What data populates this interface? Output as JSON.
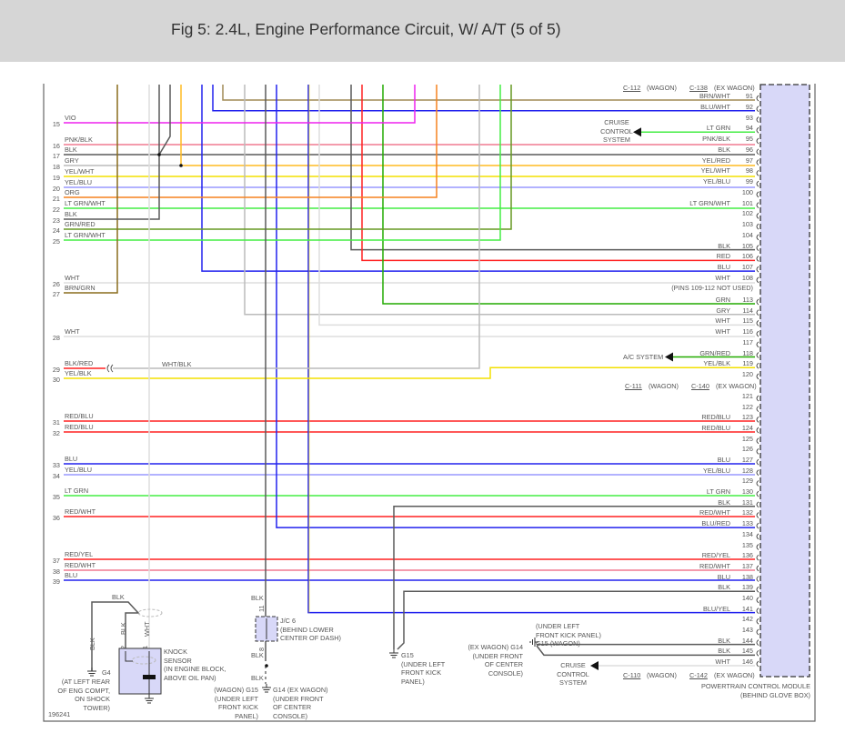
{
  "header": {
    "title": "Fig 5: 2.4L, Engine Performance Circuit, W/ A/T (5 of 5)"
  },
  "colors": {
    "VIO": "#ee22ee",
    "PNK": "#f07a90",
    "BLK": "#5a5a5a",
    "GRY": "#bbbbbb",
    "WHT": "#dddddd",
    "YEL": "#f3e000",
    "ORG": "#f5821f",
    "LTGRN": "#44ee44",
    "GRN": "#22aa00",
    "OLV": "#669922",
    "BRN": "#8a6d1d",
    "BRNWHT": "#a08a55",
    "BLU": "#2222ee",
    "RED": "#ff2020",
    "YELBLU": "#9999ff",
    "YELRED": "#ffbb22",
    "PCM": "#d8d8f8"
  },
  "left_pins": [
    {
      "pin": "15",
      "wire": "VIO"
    },
    {
      "pin": "16",
      "wire": "PNK/BLK"
    },
    {
      "pin": "17",
      "wire": "BLK"
    },
    {
      "pin": "18",
      "wire": "GRY"
    },
    {
      "pin": "19",
      "wire": "YEL/WHT"
    },
    {
      "pin": "20",
      "wire": "YEL/BLU"
    },
    {
      "pin": "21",
      "wire": "ORG"
    },
    {
      "pin": "22",
      "wire": "LT GRN/WHT"
    },
    {
      "pin": "23",
      "wire": "BLK"
    },
    {
      "pin": "24",
      "wire": "GRN/RED"
    },
    {
      "pin": "25",
      "wire": "LT GRN/WHT"
    },
    {
      "pin": "26",
      "wire": "WHT"
    },
    {
      "pin": "27",
      "wire": "BRN/GRN"
    },
    {
      "pin": "28",
      "wire": "WHT"
    },
    {
      "pin": "29",
      "wire": "BLK/RED"
    },
    {
      "pin": "30",
      "wire": "YEL/BLK"
    },
    {
      "pin": "31",
      "wire": "RED/BLU"
    },
    {
      "pin": "32",
      "wire": "RED/BLU"
    },
    {
      "pin": "33",
      "wire": "BLU"
    },
    {
      "pin": "34",
      "wire": "YEL/BLU"
    },
    {
      "pin": "35",
      "wire": "LT GRN"
    },
    {
      "pin": "36",
      "wire": "RED/WHT"
    },
    {
      "pin": "37",
      "wire": "RED/YEL"
    },
    {
      "pin": "38",
      "wire": "RED/WHT"
    },
    {
      "pin": "39",
      "wire": "BLU"
    }
  ],
  "right_pins": [
    {
      "pin": "91",
      "wire": "BRN/WHT"
    },
    {
      "pin": "92",
      "wire": "BLU/WHT"
    },
    {
      "pin": "93",
      "wire": ""
    },
    {
      "pin": "94",
      "wire": "LT GRN"
    },
    {
      "pin": "95",
      "wire": "PNK/BLK"
    },
    {
      "pin": "96",
      "wire": "BLK"
    },
    {
      "pin": "97",
      "wire": "YEL/RED"
    },
    {
      "pin": "98",
      "wire": "YEL/WHT"
    },
    {
      "pin": "99",
      "wire": "YEL/BLU"
    },
    {
      "pin": "100",
      "wire": ""
    },
    {
      "pin": "101",
      "wire": "LT GRN/WHT"
    },
    {
      "pin": "102",
      "wire": ""
    },
    {
      "pin": "103",
      "wire": ""
    },
    {
      "pin": "104",
      "wire": ""
    },
    {
      "pin": "105",
      "wire": "BLK"
    },
    {
      "pin": "106",
      "wire": "RED"
    },
    {
      "pin": "107",
      "wire": "BLU"
    },
    {
      "pin": "108",
      "wire": "WHT"
    },
    {
      "pin": "113",
      "wire": "GRN"
    },
    {
      "pin": "114",
      "wire": "GRY"
    },
    {
      "pin": "115",
      "wire": "WHT"
    },
    {
      "pin": "116",
      "wire": "WHT"
    },
    {
      "pin": "117",
      "wire": ""
    },
    {
      "pin": "118",
      "wire": "GRN/RED"
    },
    {
      "pin": "119",
      "wire": "YEL/BLK"
    },
    {
      "pin": "120",
      "wire": ""
    },
    {
      "pin": "121",
      "wire": ""
    },
    {
      "pin": "122",
      "wire": ""
    },
    {
      "pin": "123",
      "wire": "RED/BLU"
    },
    {
      "pin": "124",
      "wire": "RED/BLU"
    },
    {
      "pin": "125",
      "wire": ""
    },
    {
      "pin": "126",
      "wire": ""
    },
    {
      "pin": "127",
      "wire": "BLU"
    },
    {
      "pin": "128",
      "wire": "YEL/BLU"
    },
    {
      "pin": "129",
      "wire": ""
    },
    {
      "pin": "130",
      "wire": "LT GRN"
    },
    {
      "pin": "131",
      "wire": "BLK"
    },
    {
      "pin": "132",
      "wire": "RED/WHT"
    },
    {
      "pin": "133",
      "wire": "BLU/RED"
    },
    {
      "pin": "134",
      "wire": ""
    },
    {
      "pin": "135",
      "wire": ""
    },
    {
      "pin": "136",
      "wire": "RED/YEL"
    },
    {
      "pin": "137",
      "wire": "RED/WHT"
    },
    {
      "pin": "138",
      "wire": "BLU"
    },
    {
      "pin": "139",
      "wire": "BLK"
    },
    {
      "pin": "140",
      "wire": ""
    },
    {
      "pin": "141",
      "wire": "BLU/YEL"
    },
    {
      "pin": "142",
      "wire": ""
    },
    {
      "pin": "143",
      "wire": ""
    },
    {
      "pin": "144",
      "wire": "BLK"
    },
    {
      "pin": "145",
      "wire": "BLK"
    },
    {
      "pin": "146",
      "wire": "WHT"
    }
  ],
  "connectors": {
    "top": {
      "wagon_id": "C-112",
      "wagon": "(WAGON)",
      "ex_id": "C-138",
      "ex": "(EX WAGON)"
    },
    "mid": {
      "wagon_id": "C-111",
      "wagon": "(WAGON)",
      "ex_id": "C-140",
      "ex": "(EX WAGON)"
    },
    "bot": {
      "wagon_id": "C-110",
      "wagon": "(WAGON)",
      "ex_id": "C-142",
      "ex": "(EX WAGON)"
    }
  },
  "notes": {
    "pins_unused": "(PINS 109-112 NOT USED)",
    "cruise_top": "CRUISE\nCONTROL\nSYSTEM",
    "ac_system": "A/C SYSTEM",
    "wht_blk": "WHT/BLK",
    "cruise_bottom": "CRUISE\nCONTROL\nSYSTEM",
    "pcm": "POWERTRAIN CONTROL MODULE\n(BEHIND GLOVE BOX)",
    "g15_kick_top": "(UNDER LEFT\nFRONT KICK PANEL)\nG15 (WAGON)",
    "g14_ex": "(EX WAGON) G14\n(UNDER FRONT\nOF CENTER\nCONSOLE)",
    "g15_mid": "G15\n(UNDER LEFT\nFRONT KICK\nPANEL)",
    "jc6": "J/C 6\n(BEHIND LOWER\nCENTER OF DASH)",
    "jc6_pin_top": "11",
    "jc6_pin_bot": "8",
    "blk": "BLK",
    "wht": "WHT",
    "g15_wagon": "(WAGON) G15\n(UNDER LEFT\nFRONT KICK\nPANEL)",
    "g14_ex_wagon": "G14 (EX WAGON)\n(UNDER FRONT\nOF CENTER\nCONSOLE)",
    "knock": "KNOCK\nSENSOR\n(IN ENGINE BLOCK,\nABOVE OIL PAN)",
    "ks_pin2": "2",
    "ks_pin1": "1",
    "g4": "G4",
    "g4_loc": "(AT LEFT REAR\nOF ENG COMPT,\nON SHOCK\nTOWER)",
    "fig_id": "196241"
  }
}
